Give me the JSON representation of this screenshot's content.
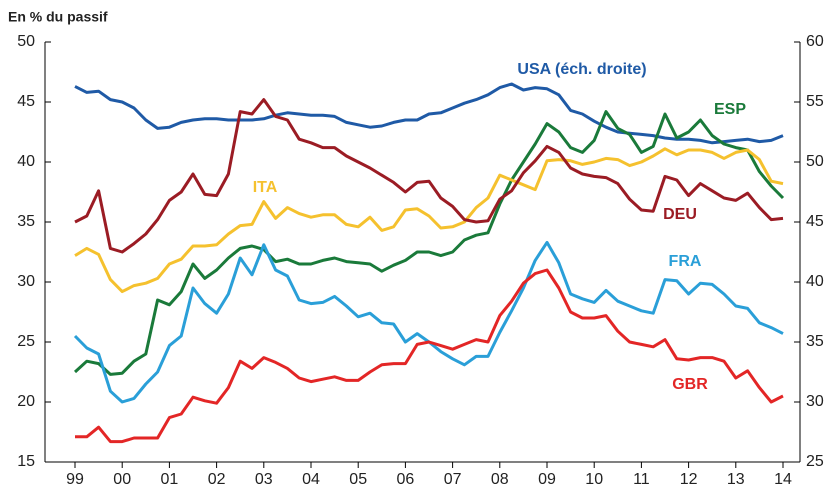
{
  "chart_data": {
    "type": "line",
    "y_label": "En % du passif",
    "categories": [
      "99",
      null,
      null,
      null,
      "00",
      null,
      null,
      null,
      "01",
      null,
      null,
      null,
      "02",
      null,
      null,
      null,
      "03",
      null,
      null,
      null,
      "04",
      null,
      null,
      null,
      "05",
      null,
      null,
      null,
      "06",
      null,
      null,
      null,
      "07",
      null,
      null,
      null,
      "08",
      null,
      null,
      null,
      "09",
      null,
      null,
      null,
      "10",
      null,
      null,
      null,
      "11",
      null,
      null,
      null,
      "12",
      null,
      null,
      null,
      "13",
      null,
      null,
      null,
      "14"
    ],
    "ylim": [
      15,
      50
    ],
    "yticks": [
      15,
      20,
      25,
      30,
      35,
      40,
      45,
      50
    ],
    "y2lim": [
      25,
      60
    ],
    "y2ticks": [
      25,
      30,
      35,
      40,
      45,
      50,
      55,
      60
    ],
    "grid": false,
    "series": [
      {
        "name": "USA (éch. droite)",
        "color": "#1f5aa6",
        "axis": "y2",
        "values": [
          56.3,
          55.8,
          55.9,
          55.2,
          55.0,
          54.5,
          53.5,
          52.8,
          52.9,
          53.3,
          53.5,
          53.6,
          53.6,
          53.5,
          53.5,
          53.5,
          53.6,
          53.9,
          54.1,
          54.0,
          53.9,
          53.9,
          53.8,
          53.3,
          53.1,
          52.9,
          53.0,
          53.3,
          53.5,
          53.5,
          54.0,
          54.1,
          54.5,
          54.9,
          55.2,
          55.6,
          56.2,
          56.5,
          56.0,
          56.2,
          56.1,
          55.6,
          54.3,
          54.0,
          53.4,
          52.9,
          52.5,
          52.4,
          52.3,
          52.2,
          52.0,
          51.9,
          51.9,
          51.8,
          51.6,
          51.7,
          51.8,
          51.9,
          51.7,
          51.8,
          52.2
        ]
      },
      {
        "name": "ESP",
        "color": "#1a7a3a",
        "values": [
          22.5,
          23.4,
          23.2,
          22.3,
          22.4,
          23.4,
          24.0,
          28.5,
          28.1,
          29.2,
          31.5,
          30.3,
          31.0,
          32.0,
          32.8,
          33.0,
          32.7,
          31.7,
          31.9,
          31.5,
          31.5,
          31.8,
          32.0,
          31.7,
          31.6,
          31.5,
          30.9,
          31.4,
          31.8,
          32.5,
          32.5,
          32.2,
          32.5,
          33.5,
          33.9,
          34.1,
          36.5,
          38.5,
          40.0,
          41.5,
          43.2,
          42.5,
          41.2,
          40.8,
          41.8,
          44.2,
          42.8,
          42.3,
          40.8,
          41.3,
          44.0,
          42.0,
          42.5,
          43.5,
          42.2,
          41.5,
          41.2,
          41.0,
          39.2,
          38.0,
          37.0
        ]
      },
      {
        "name": "ITA",
        "color": "#f5c12e",
        "values": [
          32.2,
          32.8,
          32.3,
          30.2,
          29.2,
          29.7,
          29.9,
          30.3,
          31.5,
          31.9,
          33.0,
          33.0,
          33.1,
          34.0,
          34.7,
          34.8,
          36.7,
          35.3,
          36.2,
          35.7,
          35.4,
          35.6,
          35.6,
          34.8,
          34.6,
          35.4,
          34.3,
          34.6,
          36.0,
          36.1,
          35.5,
          34.5,
          34.6,
          35.0,
          36.2,
          37.0,
          38.9,
          38.5,
          38.1,
          37.7,
          40.1,
          40.2,
          40.1,
          39.8,
          40.0,
          40.3,
          40.2,
          39.7,
          40.0,
          40.5,
          41.1,
          40.6,
          41.0,
          41.0,
          40.8,
          40.3,
          40.8,
          41.0,
          40.2,
          38.4,
          38.2
        ]
      },
      {
        "name": "DEU",
        "color": "#9b1c24",
        "values": [
          35.0,
          35.5,
          37.6,
          32.8,
          32.5,
          33.2,
          34.0,
          35.2,
          36.8,
          37.5,
          39.0,
          37.3,
          37.2,
          39.0,
          44.2,
          44.0,
          45.2,
          43.8,
          43.5,
          41.9,
          41.6,
          41.2,
          41.2,
          40.5,
          40.0,
          39.5,
          38.9,
          38.3,
          37.5,
          38.3,
          38.4,
          37.0,
          36.3,
          35.2,
          35.0,
          35.1,
          36.9,
          37.6,
          39.1,
          40.1,
          41.3,
          40.8,
          39.5,
          39.0,
          38.8,
          38.7,
          38.2,
          36.9,
          36.0,
          35.9,
          38.8,
          38.5,
          37.2,
          38.2,
          37.6,
          37.0,
          36.8,
          37.4,
          36.2,
          35.2,
          35.3
        ]
      },
      {
        "name": "FRA",
        "color": "#2a9fd8",
        "values": [
          25.5,
          24.5,
          24.0,
          20.9,
          20.0,
          20.3,
          21.5,
          22.5,
          24.7,
          25.5,
          29.5,
          28.2,
          27.4,
          29.0,
          32.0,
          30.6,
          33.1,
          31.0,
          30.5,
          28.5,
          28.2,
          28.3,
          28.8,
          28.0,
          27.1,
          27.4,
          26.6,
          26.5,
          25.0,
          25.7,
          25.0,
          24.2,
          23.6,
          23.1,
          23.8,
          23.8,
          25.8,
          27.6,
          29.5,
          31.8,
          33.3,
          31.6,
          29.0,
          28.6,
          28.3,
          29.3,
          28.4,
          28.0,
          27.6,
          27.4,
          30.2,
          30.1,
          29.0,
          29.9,
          29.8,
          29.0,
          28.0,
          27.8,
          26.6,
          26.2,
          25.7
        ]
      },
      {
        "name": "GBR",
        "color": "#e32626",
        "values": [
          17.1,
          17.1,
          17.9,
          16.7,
          16.7,
          17.0,
          17.0,
          17.0,
          18.7,
          19.0,
          20.4,
          20.1,
          19.9,
          21.2,
          23.4,
          22.8,
          23.7,
          23.3,
          22.8,
          22.0,
          21.7,
          21.9,
          22.1,
          21.8,
          21.8,
          22.5,
          23.1,
          23.2,
          23.2,
          24.8,
          25.0,
          24.7,
          24.4,
          24.8,
          25.2,
          25.0,
          27.2,
          28.4,
          29.9,
          30.7,
          31.0,
          29.5,
          27.5,
          27.0,
          27.0,
          27.2,
          25.9,
          25.0,
          24.8,
          24.6,
          25.2,
          23.6,
          23.5,
          23.7,
          23.7,
          23.4,
          22.0,
          22.6,
          21.2,
          20.0,
          20.5
        ]
      }
    ]
  }
}
